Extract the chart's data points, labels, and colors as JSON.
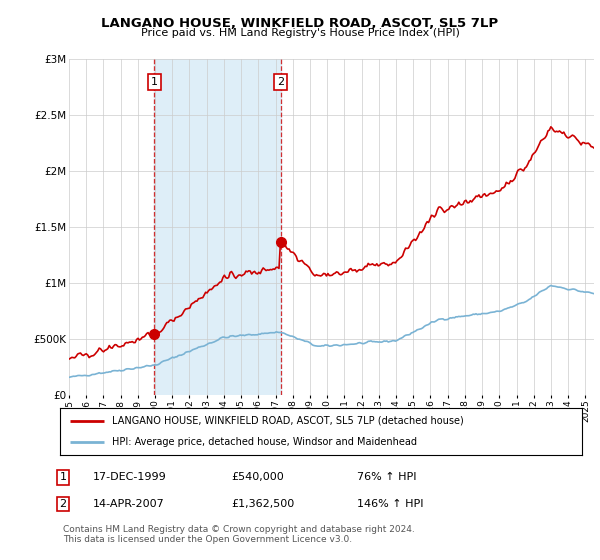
{
  "title": "LANGANO HOUSE, WINKFIELD ROAD, ASCOT, SL5 7LP",
  "subtitle": "Price paid vs. HM Land Registry's House Price Index (HPI)",
  "ylim": [
    0,
    3000000
  ],
  "yticks": [
    0,
    500000,
    1000000,
    1500000,
    2000000,
    2500000,
    3000000
  ],
  "ytick_labels": [
    "£0",
    "£500K",
    "£1M",
    "£1.5M",
    "£2M",
    "£2.5M",
    "£3M"
  ],
  "sale1_price": 540000,
  "sale1_label": "17-DEC-1999",
  "sale1_pct": "76%",
  "sale1_year": 1999.958,
  "sale2_price": 1362500,
  "sale2_label": "14-APR-2007",
  "sale2_pct": "146%",
  "sale2_year": 2007.292,
  "legend_line1": "LANGANO HOUSE, WINKFIELD ROAD, ASCOT, SL5 7LP (detached house)",
  "legend_line2": "HPI: Average price, detached house, Windsor and Maidenhead",
  "note": "Contains HM Land Registry data © Crown copyright and database right 2024.\nThis data is licensed under the Open Government Licence v3.0.",
  "hpi_color": "#7ab3d4",
  "price_color": "#cc0000",
  "shading_color": "#deeef8",
  "background_color": "#ffffff",
  "xmin": 1995.0,
  "xmax": 2025.5
}
